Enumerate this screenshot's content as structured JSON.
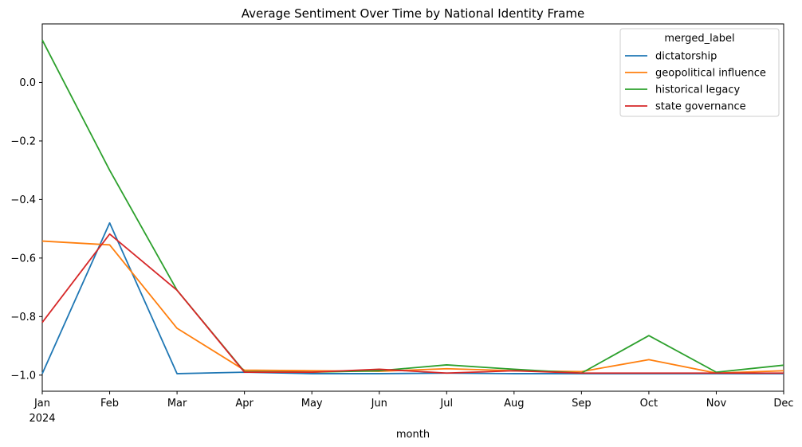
{
  "chart_data": {
    "type": "line",
    "title": "Average Sentiment Over Time by National Identity Frame",
    "xlabel": "month",
    "ylabel": "",
    "year_label": "2024",
    "categories": [
      "Jan",
      "Feb",
      "Mar",
      "Apr",
      "May",
      "Jun",
      "Jul",
      "Aug",
      "Sep",
      "Oct",
      "Nov",
      "Dec"
    ],
    "ylim": [
      -1.055,
      0.2
    ],
    "yticks": [
      -1.0,
      -0.8,
      -0.6,
      -0.4,
      -0.2,
      0.0
    ],
    "ytick_labels": [
      "−1.0",
      "−0.8",
      "−0.6",
      "−0.4",
      "−0.2",
      "0.0"
    ],
    "legend_title": "merged_label",
    "legend_position": "top-right",
    "grid": false,
    "series": [
      {
        "name": "dictatorship",
        "color": "#1f77b4",
        "values": [
          -0.995,
          -0.48,
          -0.995,
          -0.99,
          -0.995,
          -0.995,
          -0.993,
          -0.995,
          -0.995,
          -0.995,
          -0.995,
          -0.995
        ]
      },
      {
        "name": "geopolitical influence",
        "color": "#ff7f0e",
        "values": [
          -0.542,
          -0.555,
          -0.84,
          -0.983,
          -0.985,
          -0.987,
          -0.978,
          -0.985,
          -0.988,
          -0.947,
          -0.993,
          -0.985
        ]
      },
      {
        "name": "historical legacy",
        "color": "#2ca02c",
        "values": [
          0.145,
          -0.3,
          -0.71,
          -0.988,
          -0.99,
          -0.985,
          -0.965,
          -0.98,
          -0.993,
          -0.865,
          -0.99,
          -0.966
        ]
      },
      {
        "name": "state governance",
        "color": "#d62728",
        "values": [
          -0.82,
          -0.518,
          -0.71,
          -0.99,
          -0.99,
          -0.98,
          -0.993,
          -0.985,
          -0.993,
          -0.993,
          -0.993,
          -0.993
        ]
      }
    ]
  }
}
